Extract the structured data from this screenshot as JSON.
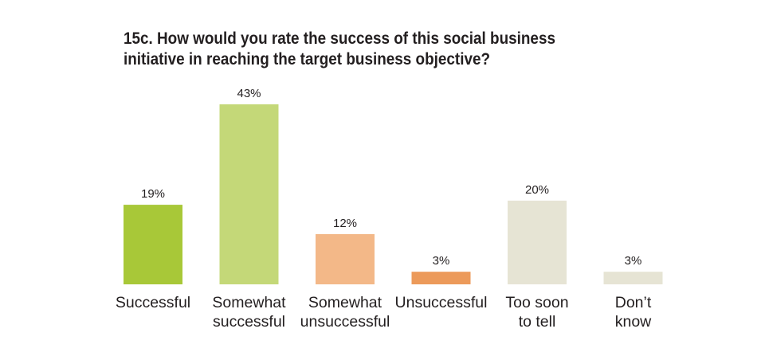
{
  "chart_data": {
    "type": "bar",
    "title_lines": [
      "15c. How would you rate the success of this social business",
      "initiative in reaching the target business objective?"
    ],
    "categories": [
      [
        "Successful"
      ],
      [
        "Somewhat",
        "successful"
      ],
      [
        "Somewhat",
        "unsuccessful"
      ],
      [
        "Unsuccessful"
      ],
      [
        "Too soon",
        "to tell"
      ],
      [
        "Don’t",
        "know"
      ]
    ],
    "values": [
      19,
      43,
      12,
      3,
      20,
      3
    ],
    "value_labels": [
      "19%",
      "43%",
      "12%",
      "3%",
      "20%",
      "3%"
    ],
    "unit": "%",
    "colors": [
      "#a8c838",
      "#c4d878",
      "#f3b888",
      "#ec9a5a",
      "#e6e4d4",
      "#e6e4d4"
    ],
    "ylim": [
      0,
      43
    ],
    "grid": false,
    "legend": "none"
  }
}
